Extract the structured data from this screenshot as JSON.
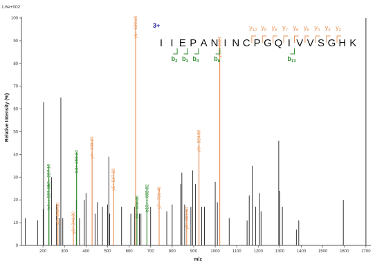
{
  "chart_data": {
    "type": "bar",
    "title": "",
    "scale_label": "1.6e+002",
    "xlabel": "m/z",
    "ylabel": "Relative Intensity (%)",
    "xlim": [
      100,
      1710
    ],
    "ylim": [
      0,
      100
    ],
    "x_ticks": [
      200,
      300,
      400,
      500,
      600,
      700,
      800,
      900,
      1000,
      1100,
      1200,
      1300,
      1400,
      1500,
      1600,
      1700
    ],
    "y_ticks": [
      0,
      10,
      20,
      30,
      40,
      50,
      60,
      70,
      80,
      90,
      100
    ],
    "colors": {
      "y": "#e8955a",
      "b": "#2e8b2e",
      "other": "#333333",
      "charge": "#1a1aa0"
    },
    "peaks": [
      {
        "mz": 118,
        "i": 12,
        "type": "other",
        "label": ""
      },
      {
        "mz": 175,
        "i": 11,
        "type": "other",
        "label": ""
      },
      {
        "mz": 201,
        "i": 16,
        "type": "other",
        "label": ""
      },
      {
        "mz": 203,
        "i": 63,
        "type": "other",
        "label": ""
      },
      {
        "mz": 227.19,
        "i": 35,
        "type": "b",
        "label": "b2+ 227.19"
      },
      {
        "mz": 227.5,
        "i": 26,
        "type": "b",
        "label": "b4++ 227.19"
      },
      {
        "mz": 240,
        "i": 30,
        "type": "other",
        "label": ""
      },
      {
        "mz": 262,
        "i": 18,
        "type": "other",
        "label": ""
      },
      {
        "mz": 269.1,
        "i": 18,
        "type": "y",
        "label": "y2+ 269.16"
      },
      {
        "mz": 276,
        "i": 12,
        "type": "other",
        "label": ""
      },
      {
        "mz": 283,
        "i": 65,
        "type": "other",
        "label": ""
      },
      {
        "mz": 292,
        "i": 12,
        "type": "other",
        "label": ""
      },
      {
        "mz": 341.2,
        "i": 14,
        "type": "y",
        "label": "y3+ 341.20"
      },
      {
        "mz": 355,
        "i": 20,
        "type": "other",
        "label": ""
      },
      {
        "mz": 356.23,
        "i": 41,
        "type": "b",
        "label": "b3+ 356.23"
      },
      {
        "mz": 370,
        "i": 12,
        "type": "other",
        "label": ""
      },
      {
        "mz": 392,
        "i": 20,
        "type": "other",
        "label": ""
      },
      {
        "mz": 400,
        "i": 23,
        "type": "other",
        "label": ""
      },
      {
        "mz": 428.23,
        "i": 47,
        "type": "y",
        "label": "y4+ 428.23"
      },
      {
        "mz": 442,
        "i": 14,
        "type": "other",
        "label": ""
      },
      {
        "mz": 453,
        "i": 19,
        "type": "other",
        "label": ""
      },
      {
        "mz": 476,
        "i": 17,
        "type": "other",
        "label": ""
      },
      {
        "mz": 500,
        "i": 18,
        "type": "other",
        "label": ""
      },
      {
        "mz": 506,
        "i": 39,
        "type": "other",
        "label": ""
      },
      {
        "mz": 510,
        "i": 14,
        "type": "other",
        "label": ""
      },
      {
        "mz": 527.32,
        "i": 33,
        "type": "y",
        "label": "y5+ 527.32"
      },
      {
        "mz": 565,
        "i": 17,
        "type": "other",
        "label": ""
      },
      {
        "mz": 608,
        "i": 14,
        "type": "other",
        "label": ""
      },
      {
        "mz": 625,
        "i": 17,
        "type": "other",
        "label": ""
      },
      {
        "mz": 630.38,
        "i": 100,
        "type": "y",
        "label": "y6+ 630.38"
      },
      {
        "mz": 636.36,
        "i": 21,
        "type": "b",
        "label": "b6+ 636.36"
      },
      {
        "mz": 648,
        "i": 14,
        "type": "other",
        "label": ""
      },
      {
        "mz": 655,
        "i": 14,
        "type": "other",
        "label": ""
      },
      {
        "mz": 682.82,
        "i": 26,
        "type": "b",
        "label": "b13++ 682.82"
      },
      {
        "mz": 700,
        "i": 17,
        "type": "other",
        "label": ""
      },
      {
        "mz": 739.48,
        "i": 25,
        "type": "y",
        "label": "y7+ 739.48"
      },
      {
        "mz": 775,
        "i": 15,
        "type": "other",
        "label": ""
      },
      {
        "mz": 800,
        "i": 18,
        "type": "other",
        "label": ""
      },
      {
        "mz": 840,
        "i": 27,
        "type": "other",
        "label": ""
      },
      {
        "mz": 845,
        "i": 32,
        "type": "other",
        "label": ""
      },
      {
        "mz": 858,
        "i": 18,
        "type": "other",
        "label": ""
      },
      {
        "mz": 867.5,
        "i": 16,
        "type": "y",
        "label": "y8+ 867.50"
      },
      {
        "mz": 887,
        "i": 17,
        "type": "other",
        "label": ""
      },
      {
        "mz": 895,
        "i": 33,
        "type": "other",
        "label": ""
      },
      {
        "mz": 908,
        "i": 27,
        "type": "other",
        "label": ""
      },
      {
        "mz": 924.5,
        "i": 50,
        "type": "y",
        "label": "y9+ 924.50"
      },
      {
        "mz": 937,
        "i": 17,
        "type": "other",
        "label": ""
      },
      {
        "mz": 950,
        "i": 17,
        "type": "other",
        "label": ""
      },
      {
        "mz": 1000,
        "i": 28,
        "type": "other",
        "label": ""
      },
      {
        "mz": 1010,
        "i": 19,
        "type": "other",
        "label": ""
      },
      {
        "mz": 1021,
        "i": 91,
        "type": "y",
        "label": "y10+ 1021"
      },
      {
        "mz": 1065,
        "i": 12,
        "type": "other",
        "label": ""
      },
      {
        "mz": 1148,
        "i": 11,
        "type": "other",
        "label": ""
      },
      {
        "mz": 1158,
        "i": 22,
        "type": "other",
        "label": ""
      },
      {
        "mz": 1172,
        "i": 35,
        "type": "other",
        "label": ""
      },
      {
        "mz": 1188,
        "i": 17,
        "type": "other",
        "label": ""
      },
      {
        "mz": 1206,
        "i": 23,
        "type": "other",
        "label": ""
      },
      {
        "mz": 1213,
        "i": 15,
        "type": "other",
        "label": ""
      },
      {
        "mz": 1295,
        "i": 46,
        "type": "other",
        "label": ""
      },
      {
        "mz": 1300,
        "i": 24,
        "type": "other",
        "label": ""
      },
      {
        "mz": 1312,
        "i": 17,
        "type": "other",
        "label": ""
      },
      {
        "mz": 1377,
        "i": 7,
        "type": "other",
        "label": ""
      },
      {
        "mz": 1388,
        "i": 11,
        "type": "other",
        "label": ""
      },
      {
        "mz": 1595,
        "i": 20,
        "type": "other",
        "label": ""
      },
      {
        "mz": 1700,
        "i": 100,
        "type": "other",
        "label": ""
      }
    ],
    "peptide": {
      "charge": "3+",
      "residues": [
        "I",
        "I",
        "E",
        "P",
        "A",
        "N",
        "I",
        "N",
        "C",
        "P",
        "G",
        "Q",
        "I",
        "V",
        "V",
        "S",
        "G",
        "H",
        "K"
      ],
      "y_ions": [
        {
          "label": "y10",
          "after_residue": 9
        },
        {
          "label": "y9",
          "after_residue": 10
        },
        {
          "label": "y8",
          "after_residue": 11
        },
        {
          "label": "y7",
          "after_residue": 12
        },
        {
          "label": "y6",
          "after_residue": 13
        },
        {
          "label": "y5",
          "after_residue": 14
        },
        {
          "label": "y4",
          "after_residue": 15
        },
        {
          "label": "y3",
          "after_residue": 16
        },
        {
          "label": "y2",
          "after_residue": 17
        }
      ],
      "b_ions": [
        {
          "label": "b2",
          "after_residue": 2
        },
        {
          "label": "b3",
          "after_residue": 3
        },
        {
          "label": "b4",
          "after_residue": 4
        },
        {
          "label": "b6",
          "after_residue": 6
        },
        {
          "label": "b13",
          "after_residue": 13
        }
      ]
    }
  }
}
